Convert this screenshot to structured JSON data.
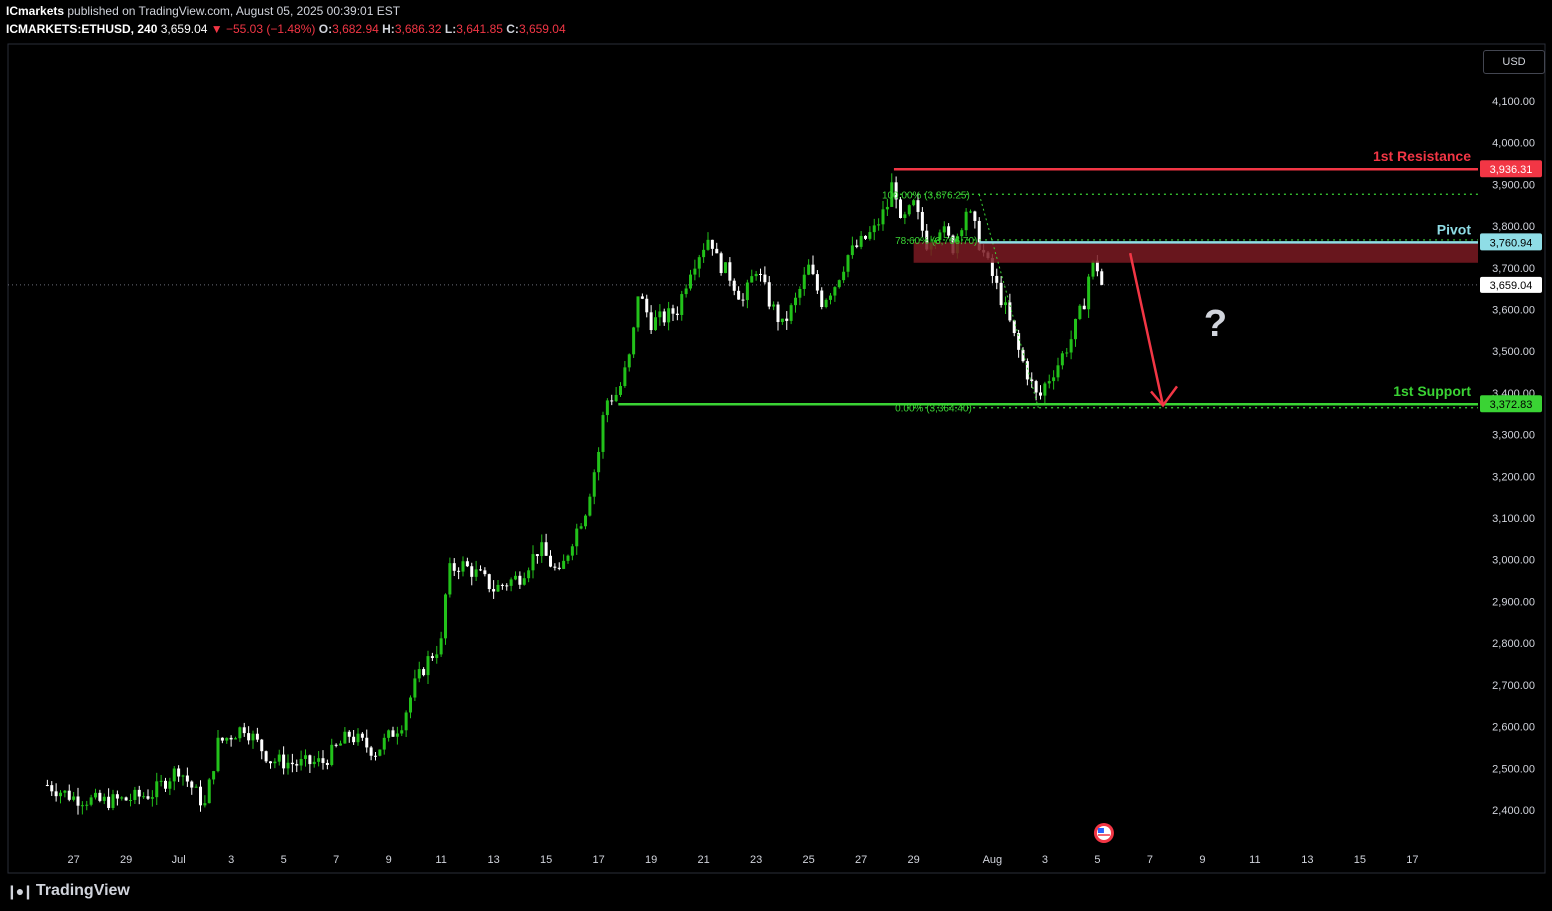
{
  "header": {
    "publisher": "ICmarkets",
    "published_text": "published on TradingView.com, August 05, 2025 00:39:01 EST",
    "symbol": "ICMARKETS:ETHUSD",
    "interval": "240",
    "last": "3,659.04",
    "change": "▼ −55.03 (−1.48%)",
    "o_label": "O:",
    "o": "3,682.94",
    "h_label": "H:",
    "h": "3,686.32",
    "l_label": "L:",
    "l": "3,641.85",
    "c_label": "C:",
    "c": "3,659.04"
  },
  "currency_button": "USD",
  "branding": "TradingView",
  "colors": {
    "background": "#000000",
    "up_candle": "#22c11a",
    "down_candle": "#ffffff",
    "resistance": "#f23645",
    "pivot": "#8fdde6",
    "support": "#3ad334",
    "zone": "#7a1a22",
    "arrow": "#f23645",
    "axis_text": "#d1d4dc"
  },
  "chart_data": {
    "type": "candlestick",
    "ylim": [
      2330,
      4160
    ],
    "y_ticks": [
      2400,
      2500,
      2600,
      2700,
      2800,
      2900,
      3000,
      3100,
      3200,
      3300,
      3400,
      3500,
      3600,
      3700,
      3800,
      3900,
      4000,
      4100
    ],
    "y_tick_labels": [
      "2,400.00",
      "2,500.00",
      "2,600.00",
      "2,700.00",
      "2,800.00",
      "2,900.00",
      "3,000.00",
      "3,100.00",
      "3,200.00",
      "3,300.00",
      "3,400.00",
      "3,500.00",
      "3,600.00",
      "3,700.00",
      "3,800.00",
      "3,900.00",
      "4,000.00",
      "4,100.00"
    ],
    "x_range": [
      "2025-06-26",
      "2025-07-18"
    ],
    "x_tick_labels": [
      {
        "date": "2025-06-27",
        "label": "27"
      },
      {
        "date": "2025-06-29",
        "label": "29"
      },
      {
        "date": "2025-07-01",
        "label": "Jul"
      },
      {
        "date": "2025-07-03",
        "label": "3"
      },
      {
        "date": "2025-07-05",
        "label": "5"
      },
      {
        "date": "2025-07-07",
        "label": "7"
      },
      {
        "date": "2025-07-09",
        "label": "9"
      },
      {
        "date": "2025-07-11",
        "label": "11"
      },
      {
        "date": "2025-07-13",
        "label": "13"
      },
      {
        "date": "2025-07-15",
        "label": "15"
      },
      {
        "date": "2025-07-17",
        "label": "17"
      },
      {
        "date": "2025-07-19",
        "label": "19"
      },
      {
        "date": "2025-07-21",
        "label": "21"
      },
      {
        "date": "2025-07-23",
        "label": "23"
      },
      {
        "date": "2025-07-25",
        "label": "25"
      },
      {
        "date": "2025-07-27",
        "label": "27"
      },
      {
        "date": "2025-07-29",
        "label": "29"
      },
      {
        "date": "2025-08-01",
        "label": "Aug"
      },
      {
        "date": "2025-08-03",
        "label": "3"
      },
      {
        "date": "2025-08-05",
        "label": "5"
      },
      {
        "date": "2025-08-07",
        "label": "7"
      },
      {
        "date": "2025-08-09",
        "label": "9"
      },
      {
        "date": "2025-08-11",
        "label": "11"
      },
      {
        "date": "2025-08-13",
        "label": "13"
      },
      {
        "date": "2025-08-15",
        "label": "15"
      },
      {
        "date": "2025-08-17",
        "label": "17"
      }
    ],
    "x_axis_start": "2025-06-24T12:00",
    "x_axis_end": "2025-08-19T12:00",
    "price_path": [
      [
        "2025-06-26T00:00",
        2460
      ],
      [
        "2025-06-27T00:00",
        2430
      ],
      [
        "2025-06-28T00:00",
        2420
      ],
      [
        "2025-06-29T00:00",
        2425
      ],
      [
        "2025-06-30T00:00",
        2440
      ],
      [
        "2025-07-01T00:00",
        2500
      ],
      [
        "2025-07-02T00:00",
        2410
      ],
      [
        "2025-07-02T12:00",
        2560
      ],
      [
        "2025-07-03T12:00",
        2600
      ],
      [
        "2025-07-04T12:00",
        2520
      ],
      [
        "2025-07-05T12:00",
        2510
      ],
      [
        "2025-07-06T12:00",
        2515
      ],
      [
        "2025-07-07T12:00",
        2580
      ],
      [
        "2025-07-08T12:00",
        2540
      ],
      [
        "2025-07-09T12:00",
        2610
      ],
      [
        "2025-07-10T00:00",
        2700
      ],
      [
        "2025-07-10T12:00",
        2760
      ],
      [
        "2025-07-11T00:00",
        2800
      ],
      [
        "2025-07-11T06:00",
        2970
      ],
      [
        "2025-07-11T18:00",
        2990
      ],
      [
        "2025-07-12T12:00",
        2960
      ],
      [
        "2025-07-13T00:00",
        2930
      ],
      [
        "2025-07-14T00:00",
        2960
      ],
      [
        "2025-07-14T18:00",
        3030
      ],
      [
        "2025-07-15T12:00",
        2960
      ],
      [
        "2025-07-16T00:00",
        3050
      ],
      [
        "2025-07-16T12:00",
        3120
      ],
      [
        "2025-07-17T00:00",
        3260
      ],
      [
        "2025-07-17T06:00",
        3380
      ],
      [
        "2025-07-17T18:00",
        3400
      ],
      [
        "2025-07-18T06:00",
        3500
      ],
      [
        "2025-07-18T12:00",
        3640
      ],
      [
        "2025-07-19T00:00",
        3570
      ],
      [
        "2025-07-19T12:00",
        3580
      ],
      [
        "2025-07-20T00:00",
        3600
      ],
      [
        "2025-07-20T12:00",
        3700
      ],
      [
        "2025-07-21T06:00",
        3780
      ],
      [
        "2025-07-21T12:00",
        3720
      ],
      [
        "2025-07-22T00:00",
        3680
      ],
      [
        "2025-07-22T12:00",
        3620
      ],
      [
        "2025-07-23T00:00",
        3700
      ],
      [
        "2025-07-23T12:00",
        3620
      ],
      [
        "2025-07-24T00:00",
        3560
      ],
      [
        "2025-07-24T12:00",
        3620
      ],
      [
        "2025-07-25T00:00",
        3700
      ],
      [
        "2025-07-25T12:00",
        3620
      ],
      [
        "2025-07-26T00:00",
        3660
      ],
      [
        "2025-07-26T12:00",
        3730
      ],
      [
        "2025-07-27T00:00",
        3760
      ],
      [
        "2025-07-27T12:00",
        3790
      ],
      [
        "2025-07-28T00:00",
        3850
      ],
      [
        "2025-07-28T06:00",
        3920
      ],
      [
        "2025-07-28T12:00",
        3800
      ],
      [
        "2025-07-29T00:00",
        3850
      ],
      [
        "2025-07-29T12:00",
        3760
      ],
      [
        "2025-07-30T00:00",
        3800
      ],
      [
        "2025-07-30T12:00",
        3750
      ],
      [
        "2025-07-31T00:00",
        3840
      ],
      [
        "2025-07-31T06:00",
        3810
      ],
      [
        "2025-07-31T12:00",
        3760
      ],
      [
        "2025-08-01T00:00",
        3680
      ],
      [
        "2025-08-01T12:00",
        3600
      ],
      [
        "2025-08-02T00:00",
        3500
      ],
      [
        "2025-08-02T12:00",
        3420
      ],
      [
        "2025-08-02T18:00",
        3380
      ],
      [
        "2025-08-03T00:00",
        3420
      ],
      [
        "2025-08-03T12:00",
        3470
      ],
      [
        "2025-08-04T00:00",
        3530
      ],
      [
        "2025-08-04T12:00",
        3620
      ],
      [
        "2025-08-04T18:00",
        3710
      ],
      [
        "2025-08-05T00:00",
        3700
      ],
      [
        "2025-08-05T04:00",
        3659
      ]
    ],
    "levels": [
      {
        "name": "1st Resistance",
        "price": 3936.31,
        "label": "3,936.31",
        "start": "2025-07-28T06:00"
      },
      {
        "name": "Pivot",
        "price": 3760.94,
        "label": "3,760.94",
        "start": "2025-07-31T12:00"
      },
      {
        "name": "1st Support",
        "price": 3372.83,
        "label": "3,372.83",
        "start": "2025-07-17T18:00"
      }
    ],
    "last_price": {
      "price": 3659.04,
      "label": "3,659.04"
    },
    "fibonacci": [
      {
        "text": "100.00% (3,876.25)",
        "price": 3876.25,
        "start": "2025-07-28T06:00"
      },
      {
        "text": "78.60% (3,766.70)",
        "price": 3766.7,
        "start": "2025-07-28T18:00"
      },
      {
        "text": "0.00% (3,364.40)",
        "price": 3364.4,
        "start": "2025-07-28T18:00"
      }
    ],
    "zone": {
      "top": 3760.94,
      "bottom": 3712,
      "start": "2025-07-29T00:00"
    },
    "arrow": {
      "from": [
        "2025-08-06T06:00",
        3735
      ],
      "to": [
        "2025-08-07T12:00",
        3370
      ]
    },
    "question_mark": {
      "text": "?",
      "at": [
        "2025-08-09T12:00",
        3560
      ]
    }
  }
}
